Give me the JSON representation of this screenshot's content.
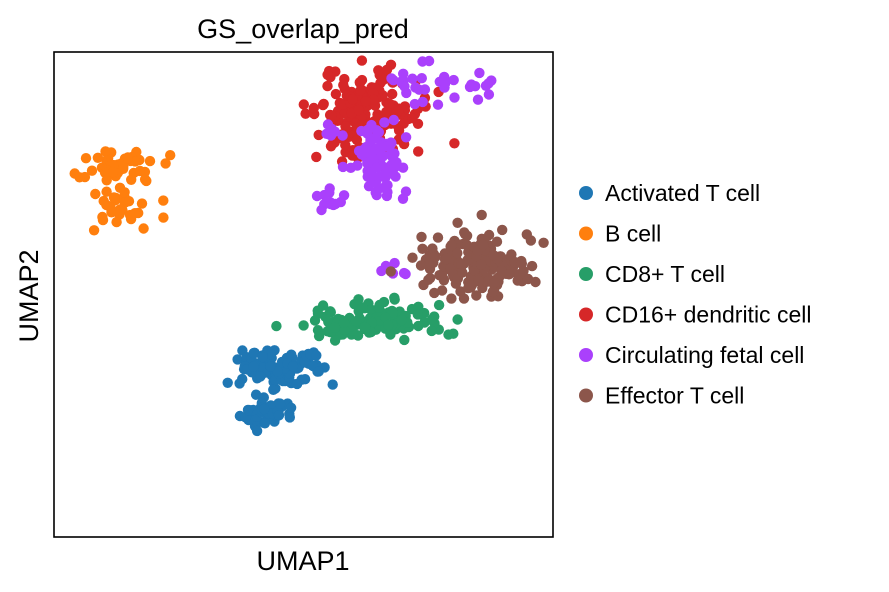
{
  "chart_data": {
    "type": "scatter",
    "title": "GS_overlap_pred",
    "xlabel": "UMAP1",
    "ylabel": "UMAP2",
    "xlim": [
      -6.0,
      18.0
    ],
    "ylim": [
      -6.0,
      18.0
    ],
    "ticks_shown": false,
    "grid": false,
    "legend_position": "right",
    "series": [
      {
        "name": "Activated T cell",
        "color": "#1f77b4",
        "clusters": [
          {
            "cx": 4.6,
            "cy": 2.3,
            "sx": 0.9,
            "sy": 0.5,
            "n": 90
          },
          {
            "cx": 4.2,
            "cy": 0.1,
            "sx": 0.6,
            "sy": 0.3,
            "n": 45
          },
          {
            "cx": 6.1,
            "cy": 2.6,
            "sx": 0.5,
            "sy": 0.3,
            "n": 15
          }
        ]
      },
      {
        "name": "B cell",
        "color": "#ff7f0e",
        "clusters": [
          {
            "cx": -3.0,
            "cy": 12.5,
            "sx": 1.0,
            "sy": 0.4,
            "n": 45
          },
          {
            "cx": -2.9,
            "cy": 10.4,
            "sx": 0.7,
            "sy": 0.8,
            "n": 35
          }
        ]
      },
      {
        "name": "CD8+ T cell",
        "color": "#279e68",
        "clusters": [
          {
            "cx": 9.5,
            "cy": 4.7,
            "sx": 1.6,
            "sy": 0.45,
            "n": 110
          },
          {
            "cx": 7.6,
            "cy": 4.4,
            "sx": 0.4,
            "sy": 0.3,
            "n": 8
          }
        ]
      },
      {
        "name": "CD16+ dendritic cell",
        "color": "#d62728",
        "clusters": [
          {
            "cx": 9.2,
            "cy": 15.0,
            "sx": 1.3,
            "sy": 1.1,
            "n": 180
          }
        ]
      },
      {
        "name": "Circulating fetal cell",
        "color": "#aa40fc",
        "clusters": [
          {
            "cx": 9.5,
            "cy": 12.5,
            "sx": 0.7,
            "sy": 0.9,
            "n": 80
          },
          {
            "cx": 7.3,
            "cy": 10.8,
            "sx": 0.3,
            "sy": 0.3,
            "n": 12
          },
          {
            "cx": 11.8,
            "cy": 16.5,
            "sx": 1.0,
            "sy": 0.5,
            "n": 25
          },
          {
            "cx": 14.5,
            "cy": 15.9,
            "sx": 1.2,
            "sy": 0.6,
            "n": 8
          },
          {
            "cx": 7.5,
            "cy": 14.0,
            "sx": 0.3,
            "sy": 0.2,
            "n": 6
          },
          {
            "cx": 10.3,
            "cy": 7.2,
            "sx": 0.4,
            "sy": 0.2,
            "n": 6
          }
        ]
      },
      {
        "name": "Effector T cell",
        "color": "#8c564b",
        "clusters": [
          {
            "cx": 14.5,
            "cy": 7.5,
            "sx": 1.5,
            "sy": 0.8,
            "n": 170
          }
        ]
      }
    ]
  }
}
